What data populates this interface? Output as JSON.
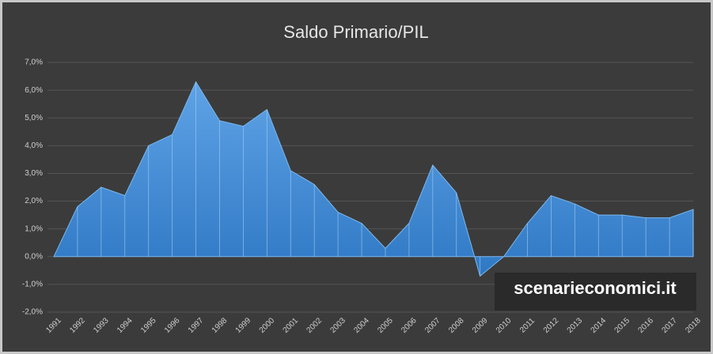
{
  "chart_data": {
    "type": "area",
    "title": "Saldo Primario/PIL",
    "categories": [
      "1991",
      "1992",
      "1993",
      "1994",
      "1995",
      "1996",
      "1997",
      "1998",
      "1999",
      "2000",
      "2001",
      "2002",
      "2003",
      "2004",
      "2005",
      "2006",
      "2007",
      "2008",
      "2009",
      "2010",
      "2011",
      "2012",
      "2013",
      "2014",
      "2015",
      "2016",
      "2017",
      "2018"
    ],
    "series": [
      {
        "name": "Saldo Primario/PIL",
        "color": "#4a90d9",
        "values": [
          0,
          1.8,
          2.5,
          2.2,
          4.0,
          4.4,
          6.3,
          4.9,
          4.7,
          5.3,
          3.1,
          2.6,
          1.6,
          1.2,
          0.3,
          1.2,
          3.3,
          2.3,
          -0.7,
          0.0,
          1.2,
          2.2,
          1.9,
          1.5,
          1.5,
          1.4,
          1.4,
          1.7
        ]
      }
    ],
    "ylim": [
      -2,
      7
    ],
    "yticks": [
      {
        "value": -2,
        "label": "-2,0%"
      },
      {
        "value": -1,
        "label": "-1,0%"
      },
      {
        "value": 0,
        "label": "0,0%"
      },
      {
        "value": 1,
        "label": "1,0%"
      },
      {
        "value": 2,
        "label": "2,0%"
      },
      {
        "value": 3,
        "label": "3,0%"
      },
      {
        "value": 4,
        "label": "4,0%"
      },
      {
        "value": 5,
        "label": "5,0%"
      },
      {
        "value": 6,
        "label": "6,0%"
      },
      {
        "value": 7,
        "label": "7,0%"
      }
    ],
    "grid": true,
    "annotations": [
      "scenarieconomici.it"
    ]
  }
}
